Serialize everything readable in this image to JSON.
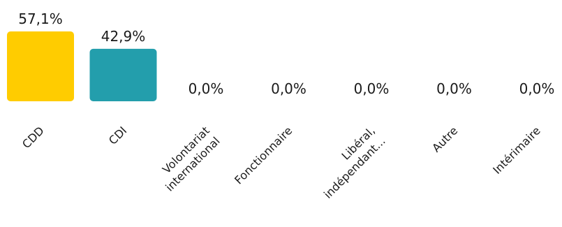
{
  "chart_data": {
    "type": "bar",
    "title": "",
    "xlabel": "",
    "ylabel": "",
    "ylim": [
      0,
      57.1
    ],
    "grid": false,
    "categories": [
      [
        "CDD"
      ],
      [
        "CDI"
      ],
      [
        "Volontariat",
        "international"
      ],
      [
        "Fonctionnaire"
      ],
      [
        "Libéral,",
        "indépendant..."
      ],
      [
        "Autre"
      ],
      [
        "Intérimaire"
      ]
    ],
    "values": [
      57.1,
      42.9,
      0.0,
      0.0,
      0.0,
      0.0,
      0.0
    ],
    "value_labels": [
      "57,1%",
      "42,9%",
      "0,0%",
      "0,0%",
      "0,0%",
      "0,0%",
      "0,0%"
    ],
    "colors": [
      "#FFCC00",
      "#239EAC",
      "#239EAC",
      "#239EAC",
      "#239EAC",
      "#239EAC",
      "#239EAC"
    ]
  }
}
